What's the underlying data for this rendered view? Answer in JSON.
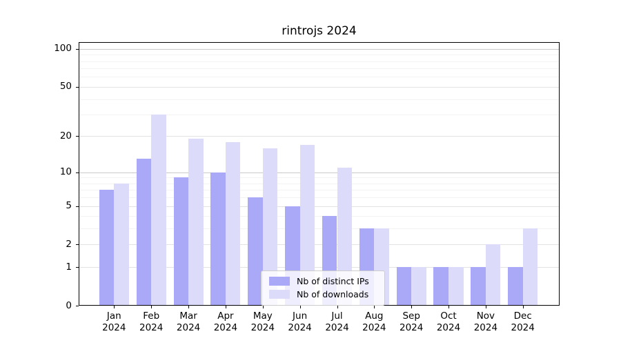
{
  "chart_data": {
    "type": "bar",
    "title": "rintrojs 2024",
    "categories": [
      "Jan",
      "Feb",
      "Mar",
      "Apr",
      "May",
      "Jun",
      "Jul",
      "Aug",
      "Sep",
      "Oct",
      "Nov",
      "Dec"
    ],
    "year_label": "2024",
    "series": [
      {
        "name": "Nb of distinct IPs",
        "color": "#a9a9f8",
        "values": [
          7,
          13,
          9,
          10,
          6,
          5,
          4,
          3,
          1,
          1,
          1,
          1
        ]
      },
      {
        "name": "Nb of downloads",
        "color": "#dcdcfa",
        "values": [
          8,
          30,
          19,
          18,
          16,
          17,
          11,
          3,
          1,
          1,
          2,
          3
        ]
      }
    ],
    "xlabel": "",
    "ylabel": "",
    "yscale": "log1p",
    "ylim": [
      0,
      113
    ],
    "yticks": [
      0,
      1,
      2,
      5,
      10,
      20,
      50,
      100
    ],
    "minor_gridlines": [
      3,
      4,
      6,
      7,
      8,
      9,
      30,
      40,
      60,
      70,
      80,
      90
    ],
    "grid": true,
    "legend_position": "lower center",
    "colors": {
      "axis": "#000000",
      "gridline_power": "#c9c9c9",
      "gridline_labeled": "#e2e2e2",
      "gridline_minor": "#f3f3f3"
    }
  }
}
